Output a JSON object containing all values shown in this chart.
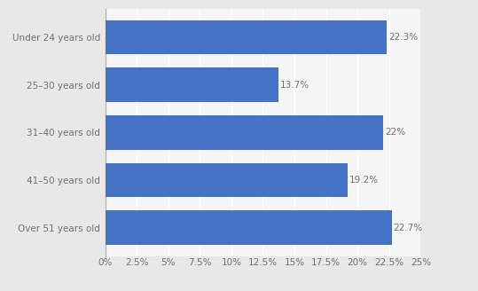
{
  "categories": [
    "Under 24 years old",
    "25–30 years old",
    "31–40 years old",
    "41–50 years old",
    "Over 51 years old"
  ],
  "values": [
    22.3,
    13.7,
    22.0,
    19.2,
    22.7
  ],
  "labels": [
    "22.3%",
    "13.7%",
    "22%",
    "19.2%",
    "22.7%"
  ],
  "bar_color": "#4472C4",
  "background_color": "#e8e8e8",
  "plot_bg_color": "#f5f5f5",
  "xlim": [
    0,
    25
  ],
  "xticks": [
    0,
    2.5,
    5,
    7.5,
    10,
    12.5,
    15,
    17.5,
    20,
    22.5,
    25
  ],
  "xtick_labels": [
    "0%",
    "2.5%",
    "5%",
    "7.5%",
    "10%",
    "12.5%",
    "15%",
    "17.5%",
    "20%",
    "22.5%",
    "25%"
  ],
  "tick_color": "#707070",
  "label_fontsize": 7.5,
  "bar_label_fontsize": 7.5,
  "grid_color": "#ffffff",
  "bar_height": 0.72
}
